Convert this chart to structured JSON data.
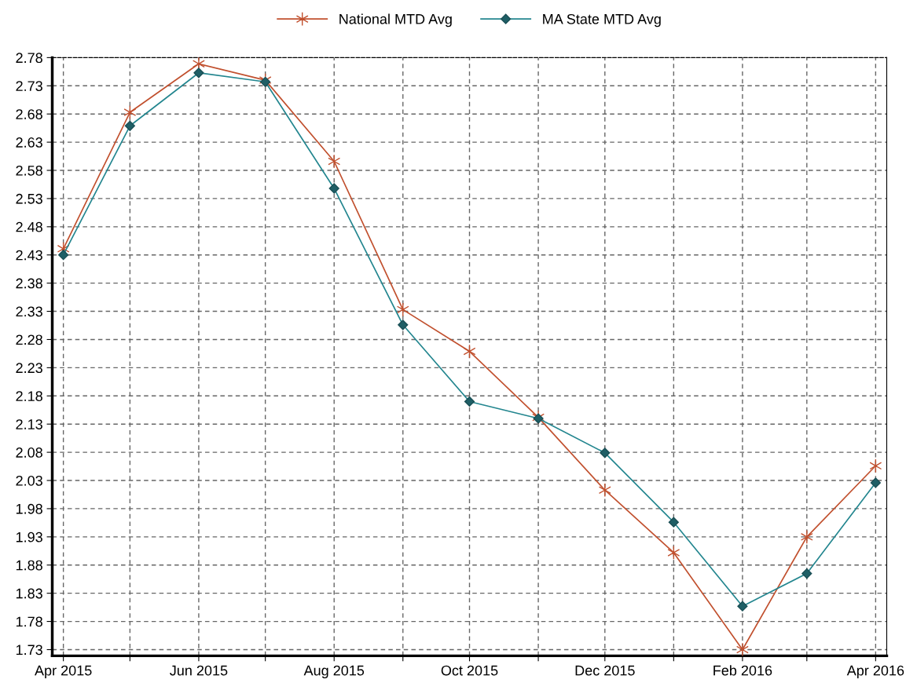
{
  "chart_data": {
    "type": "line",
    "x": [
      "2015-04",
      "2015-05",
      "2015-06",
      "2015-07",
      "2015-08",
      "2015-09",
      "2015-10",
      "2015-11",
      "2015-12",
      "2016-01",
      "2016-02",
      "2016-03",
      "2016-04"
    ],
    "series": [
      {
        "name": "National MTD Avg",
        "color": "#c1502e",
        "marker": "cross",
        "values": [
          2.441,
          2.683,
          2.769,
          2.74,
          2.596,
          2.333,
          2.259,
          2.142,
          2.013,
          1.902,
          1.73,
          1.93,
          2.056
        ]
      },
      {
        "name": "MA State MTD Avg",
        "color": "#23868f",
        "marker": "diamond",
        "values": [
          2.43,
          2.659,
          2.753,
          2.737,
          2.548,
          2.306,
          2.17,
          2.14,
          2.079,
          1.956,
          1.807,
          1.865,
          2.026
        ]
      }
    ],
    "xlim": [
      "2015-03-27",
      "2016-04-06"
    ],
    "xticks": [
      {
        "value": "2015-04",
        "label": "Apr 2015"
      },
      {
        "value": "2015-05",
        "label": null
      },
      {
        "value": "2015-06",
        "label": "Jun 2015"
      },
      {
        "value": "2015-07",
        "label": null
      },
      {
        "value": "2015-08",
        "label": "Aug 2015"
      },
      {
        "value": "2015-09",
        "label": null
      },
      {
        "value": "2015-10",
        "label": "Oct 2015"
      },
      {
        "value": "2015-11",
        "label": null
      },
      {
        "value": "2015-12",
        "label": "Dec 2015"
      },
      {
        "value": "2016-01",
        "label": null
      },
      {
        "value": "2016-02",
        "label": "Feb 2016"
      },
      {
        "value": "2016-03",
        "label": null
      },
      {
        "value": "2016-04",
        "label": "Apr 2016"
      }
    ],
    "ylim": [
      1.719,
      2.78
    ],
    "yticks": [
      1.73,
      1.78,
      1.83,
      1.88,
      1.93,
      1.98,
      2.03,
      2.08,
      2.13,
      2.18,
      2.23,
      2.28,
      2.33,
      2.38,
      2.43,
      2.48,
      2.53,
      2.58,
      2.63,
      2.68,
      2.73,
      2.78
    ],
    "grid": true,
    "legend": "top",
    "line_style": "solid"
  }
}
